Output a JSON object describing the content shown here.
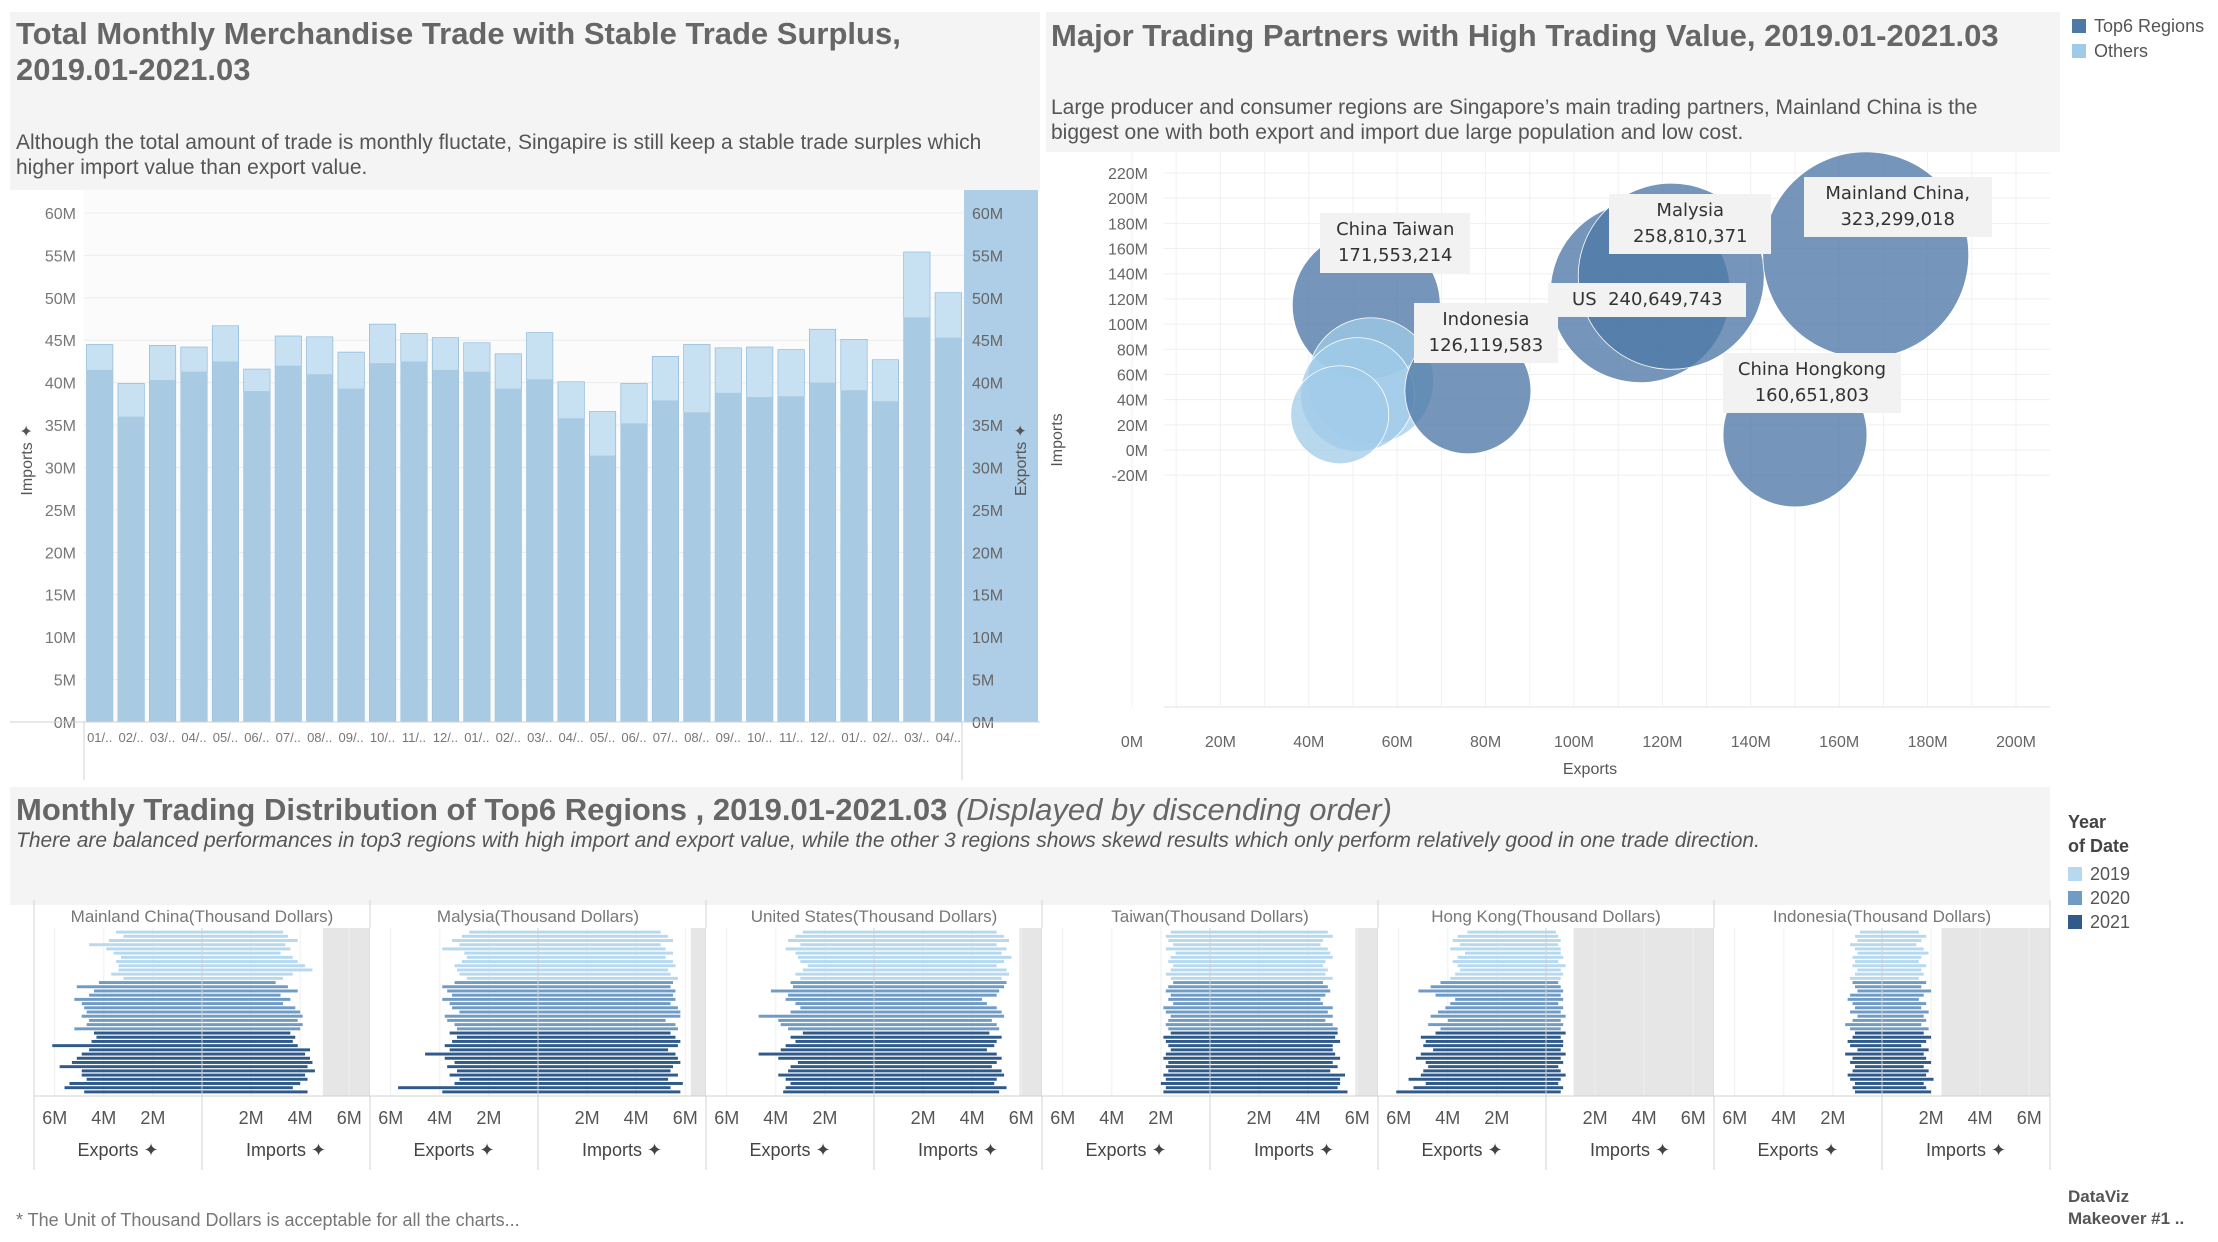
{
  "colors": {
    "bar_export": "#a9cae3",
    "bar_import": "#c7e1f2",
    "right_axis_bg": "#aecde6",
    "bubble_top6": "#4e79a7",
    "bubble_others": "#a0cbe8",
    "y2019": "#b7d9ef",
    "y2020": "#6f9bc5",
    "y2021": "#2f5a8a"
  },
  "chart1": {
    "title_line1": "Total Monthly Merchandise Trade with Stable Trade Surplus,",
    "title_line2": "2019.01-2021.03",
    "subtitle_line1": "Although the total amount of trade is monthly fluctate, Singapire is still keep a stable trade surples which",
    "subtitle_line2": "higher import value than export value.",
    "ylabel_left": "Imports",
    "ylabel_right": "Exports",
    "pin": "✦",
    "ticks": [
      "0M",
      "5M",
      "10M",
      "15M",
      "20M",
      "25M",
      "30M",
      "35M",
      "40M",
      "45M",
      "50M",
      "55M",
      "60M"
    ],
    "x_labels": [
      "01/..",
      "02/..",
      "03/..",
      "04/..",
      "05/..",
      "06/..",
      "07/..",
      "08/..",
      "09/..",
      "10/..",
      "11/..",
      "12/..",
      "01/..",
      "02/..",
      "03/..",
      "04/..",
      "05/..",
      "06/..",
      "07/..",
      "08/..",
      "09/..",
      "10/..",
      "11/..",
      "12/..",
      "01/..",
      "02/..",
      "03/..",
      "04/.."
    ]
  },
  "chart_data": [
    {
      "type": "bar",
      "title": "Total Monthly Merchandise Trade with Stable Trade Surplus, 2019.01-2021.03",
      "ylabel": "Imports / Exports",
      "ylim": [
        0,
        62
      ],
      "categories": [
        "01/..",
        "02/..",
        "03/..",
        "04/..",
        "05/..",
        "06/..",
        "07/..",
        "08/..",
        "09/..",
        "10/..",
        "11/..",
        "12/..",
        "01/..",
        "02/..",
        "03/..",
        "04/..",
        "05/..",
        "06/..",
        "07/..",
        "08/..",
        "09/..",
        "10/..",
        "11/..",
        "12/..",
        "01/..",
        "02/..",
        "03/..",
        "04/.."
      ],
      "series": [
        {
          "name": "Imports",
          "values": [
            41.5,
            36,
            40.3,
            41.3,
            42.5,
            39,
            42,
            41,
            39.3,
            42.3,
            42.5,
            41.5,
            41.3,
            39.3,
            40.4,
            35.8,
            31.4,
            35.2,
            37.9,
            36.5,
            38.8,
            38.3,
            38.4,
            40,
            39.1,
            37.8,
            47.7,
            45.3
          ]
        },
        {
          "name": "Exports",
          "values": [
            44.5,
            39.9,
            44.4,
            44.2,
            46.7,
            41.6,
            45.5,
            45.4,
            43.6,
            46.9,
            45.8,
            45.3,
            44.7,
            43.4,
            45.9,
            40.1,
            36.6,
            39.9,
            43.1,
            44.5,
            44.1,
            44.2,
            43.9,
            46.3,
            45.1,
            42.7,
            55.4,
            50.6
          ]
        }
      ]
    },
    {
      "type": "scatter",
      "title": "Major Trading Partners with High Trading Value, 2019.01-2021.03",
      "xlabel": "Exports",
      "ylabel": "Imports",
      "xlim": [
        0,
        210
      ],
      "ylim": [
        -30,
        225
      ],
      "points": [
        {
          "name": "Mainland China,",
          "label": "323,299,018",
          "x": 166,
          "y": 155,
          "r": 103,
          "group": "Top6 Regions"
        },
        {
          "name": "Malysia",
          "label": "258,810,371",
          "x": 122,
          "y": 138,
          "r": 93,
          "group": "Top6 Regions"
        },
        {
          "name": "US",
          "label": "240,649,743",
          "x": 115,
          "y": 125,
          "r": 90,
          "group": "Top6 Regions"
        },
        {
          "name": "China Taiwan",
          "label": "171,553,214",
          "x": 53,
          "y": 115,
          "r": 74,
          "group": "Top6 Regions"
        },
        {
          "name": "China Hongkong",
          "label": "160,651,803",
          "x": 150,
          "y": 12,
          "r": 72,
          "group": "Top6 Regions"
        },
        {
          "name": "Indonesia",
          "label": "126,119,583",
          "x": 76,
          "y": 47,
          "r": 63,
          "group": "Top6 Regions"
        },
        {
          "name": "",
          "label": "",
          "x": 54,
          "y": 55,
          "r": 63,
          "group": "Others"
        },
        {
          "name": "",
          "label": "",
          "x": 51,
          "y": 44,
          "r": 57,
          "group": "Others"
        },
        {
          "name": "",
          "label": "",
          "x": 47,
          "y": 28,
          "r": 49,
          "group": "Others"
        }
      ]
    },
    {
      "type": "bar",
      "title": "Monthly Trading Distribution of Top6 Regions , 2019.01-2021.03",
      "xlim": [
        -6.5,
        6.5
      ],
      "years": [
        "2019",
        "2020",
        "2021"
      ],
      "panels": [
        {
          "name": "Mainland China(Thousand Dollars)",
          "exports": [
            3.5,
            3.2,
            3.8,
            4.6,
            3.9,
            3.6,
            3.3,
            3.5,
            3.4,
            3.4,
            3.7,
            3.2,
            4.2,
            5.1,
            4.4,
            4.6,
            5.2,
            4.9,
            4.8,
            4.7,
            4.9,
            4.6,
            4.7,
            5.2,
            4.4,
            4.3,
            4.5,
            6.1,
            4.6,
            4.9,
            5.1,
            5.3,
            5.8,
            4.9,
            4.9,
            4.7,
            5.4,
            5.6,
            4.8
          ],
          "imports": [
            3.3,
            3.5,
            3.9,
            3.4,
            3.6,
            3.2,
            3.7,
            3.9,
            4.2,
            4.5,
            3.7,
            3.3,
            3.0,
            3.5,
            3.9,
            3.2,
            3.6,
            3.3,
            3.8,
            4.0,
            4.1,
            3.9,
            4.1,
            4.0,
            3.6,
            3.8,
            3.7,
            3.9,
            4.4,
            4.2,
            4.4,
            4.5,
            4.3,
            4.6,
            4.2,
            4.3,
            4.0,
            3.7,
            4.3
          ]
        },
        {
          "name": "Malysia(Thousand Dollars)",
          "exports": [
            2.8,
            3.1,
            3.5,
            3.2,
            3.9,
            3.0,
            2.9,
            3.1,
            3.4,
            3.3,
            3.2,
            2.9,
            3.4,
            3.9,
            3.7,
            3.5,
            3.9,
            3.6,
            3.5,
            3.2,
            3.8,
            3.7,
            3.4,
            3.3,
            3.6,
            3.3,
            3.5,
            3.8,
            3.6,
            4.6,
            3.8,
            3.4,
            3.7,
            3.3,
            3.6,
            3.2,
            3.4,
            5.7,
            3.9
          ],
          "imports": [
            5.0,
            5.3,
            5.5,
            5.0,
            5.2,
            5.5,
            5.2,
            5.5,
            5.6,
            5.3,
            5.4,
            5.7,
            5.5,
            5.4,
            5.6,
            5.5,
            5.6,
            5.4,
            5.7,
            5.8,
            5.8,
            5.2,
            5.6,
            5.7,
            5.4,
            5.6,
            5.8,
            5.7,
            5.3,
            5.6,
            5.7,
            5.8,
            5.5,
            5.4,
            5.7,
            5.3,
            5.9,
            5.4,
            5.8
          ]
        },
        {
          "name": "United States(Thousand Dollars)",
          "exports": [
            2.9,
            3.2,
            3.5,
            3.0,
            3.6,
            3.2,
            3.1,
            3.0,
            2.7,
            2.9,
            3.2,
            3.0,
            3.4,
            3.3,
            4.2,
            3.5,
            3.6,
            3.2,
            3.0,
            3.4,
            4.7,
            3.9,
            3.8,
            3.5,
            2.9,
            3.4,
            3.2,
            3.6,
            3.8,
            4.7,
            3.9,
            3.1,
            3.4,
            3.5,
            3.9,
            3.6,
            3.4,
            3.6,
            3.7
          ],
          "imports": [
            5.0,
            5.3,
            5.5,
            5.0,
            5.4,
            5.2,
            5.6,
            5.3,
            5.0,
            5.4,
            5.5,
            5.2,
            5.4,
            5.3,
            5.1,
            5.0,
            4.4,
            4.6,
            5.0,
            5.2,
            5.3,
            4.8,
            5.0,
            5.1,
            4.7,
            5.2,
            5.0,
            4.9,
            4.6,
            5.0,
            5.2,
            5.0,
            4.8,
            5.2,
            5.3,
            5.0,
            4.9,
            5.4,
            5.1
          ]
        },
        {
          "name": "Taiwan(Thousand Dollars)",
          "exports": [
            1.6,
            1.8,
            1.7,
            1.5,
            1.8,
            1.4,
            1.6,
            1.7,
            1.5,
            1.6,
            1.8,
            1.6,
            1.5,
            1.7,
            1.8,
            1.6,
            1.7,
            1.5,
            1.9,
            1.8,
            1.6,
            1.7,
            1.8,
            1.7,
            1.6,
            1.9,
            1.8,
            1.7,
            1.6,
            1.8,
            1.9,
            1.7,
            1.8,
            1.7,
            1.9,
            1.8,
            2.0,
            1.8,
            1.9
          ],
          "imports": [
            4.8,
            5.0,
            4.6,
            4.5,
            4.8,
            4.9,
            5.0,
            4.7,
            4.6,
            4.8,
            4.7,
            5.0,
            4.6,
            4.8,
            4.9,
            4.7,
            4.5,
            4.6,
            5.0,
            4.8,
            5.0,
            4.7,
            5.0,
            5.2,
            5.2,
            5.1,
            5.3,
            5.0,
            5.0,
            5.1,
            5.3,
            5.0,
            5.2,
            4.9,
            5.5,
            5.3,
            5.3,
            5.2,
            5.6
          ]
        },
        {
          "name": "Hong Kong(Thousand Dollars)",
          "exports": [
            3.2,
            3.6,
            3.8,
            3.5,
            3.9,
            3.3,
            3.6,
            3.8,
            3.6,
            3.5,
            3.7,
            3.9,
            4.3,
            4.7,
            5.2,
            4.5,
            3.7,
            3.9,
            4.1,
            4.4,
            4.7,
            4.0,
            4.8,
            4.3,
            4.5,
            5.1,
            4.9,
            5.0,
            4.6,
            5.1,
            5.3,
            4.9,
            4.8,
            5.0,
            5.1,
            5.6,
            4.9,
            5.4,
            6.1
          ],
          "imports": [
            0.4,
            0.5,
            0.6,
            0.5,
            0.6,
            0.6,
            0.7,
            0.5,
            0.8,
            0.6,
            0.7,
            0.6,
            0.5,
            0.6,
            0.7,
            0.6,
            0.7,
            0.5,
            0.7,
            0.6,
            0.8,
            0.6,
            0.7,
            0.6,
            0.8,
            0.6,
            0.7,
            0.7,
            0.6,
            0.8,
            0.6,
            0.7,
            0.5,
            0.6,
            0.8,
            0.6,
            0.5,
            0.7,
            0.6
          ]
        },
        {
          "name": "Indonesia(Thousand Dollars)",
          "exports": [
            0.9,
            1.1,
            1.0,
            1.3,
            1.1,
            1.0,
            1.2,
            1.1,
            1.2,
            1.0,
            1.1,
            1.3,
            1.2,
            1.1,
            1.0,
            1.3,
            1.4,
            1.2,
            1.1,
            1.3,
            1.0,
            1.2,
            1.5,
            1.3,
            1.1,
            1.2,
            1.4,
            1.3,
            1.0,
            1.5,
            1.2,
            1.3,
            1.1,
            1.2,
            1.4,
            1.3,
            1.1,
            1.2,
            1.1
          ],
          "imports": [
            1.5,
            1.8,
            1.6,
            1.4,
            1.7,
            1.9,
            1.6,
            1.5,
            1.8,
            1.6,
            1.7,
            1.5,
            1.8,
            1.6,
            2.0,
            1.7,
            1.5,
            1.8,
            1.6,
            1.9,
            1.7,
            1.8,
            1.6,
            1.9,
            1.7,
            2.0,
            1.8,
            1.6,
            1.9,
            1.7,
            1.8,
            2.0,
            1.7,
            1.9,
            1.8,
            2.1,
            1.7,
            1.8,
            2.0
          ]
        }
      ]
    }
  ],
  "chart2": {
    "title": "Major Trading Partners with High Trading Value, 2019.01-2021.03",
    "subtitle_line1": "Large producer and consumer regions are Singapore’s main trading partners, Mainland China is the",
    "subtitle_line2": "biggest one with both export and import due large population and low cost.",
    "y_ticks": [
      "-20M",
      "0M",
      "20M",
      "40M",
      "60M",
      "80M",
      "100M",
      "120M",
      "140M",
      "160M",
      "180M",
      "200M",
      "220M"
    ],
    "x_ticks": [
      "0M",
      "20M",
      "40M",
      "60M",
      "80M",
      "100M",
      "120M",
      "140M",
      "160M",
      "180M",
      "200M"
    ],
    "xlabel": "Exports",
    "ylabel": "Imports",
    "legend": [
      {
        "label": "Top6 Regions"
      },
      {
        "label": "Others"
      }
    ]
  },
  "chart3": {
    "title": "Monthly Trading Distribution of Top6 Regions , 2019.01-2021.03",
    "title_italic": "(Displayed by discending order)",
    "subtitle": "There are balanced performances in top3 regions with high import and export value, while the other 3 regions shows skewd results which only perform relatively good in one trade direction.",
    "exports_ticks": [
      "6M",
      "4M",
      "2M"
    ],
    "imports_ticks": [
      "2M",
      "4M",
      "6M"
    ],
    "exports_label": "Exports",
    "imports_label": "Imports",
    "legend_title_line1": "Year",
    "legend_title_line2": "of Date",
    "legend": [
      "2019",
      "2020",
      "2021"
    ]
  },
  "footnote": "* The Unit of Thousand Dollars is acceptable for all the charts...",
  "credit_line1": "DataViz",
  "credit_line2": "Makeover #1 .."
}
